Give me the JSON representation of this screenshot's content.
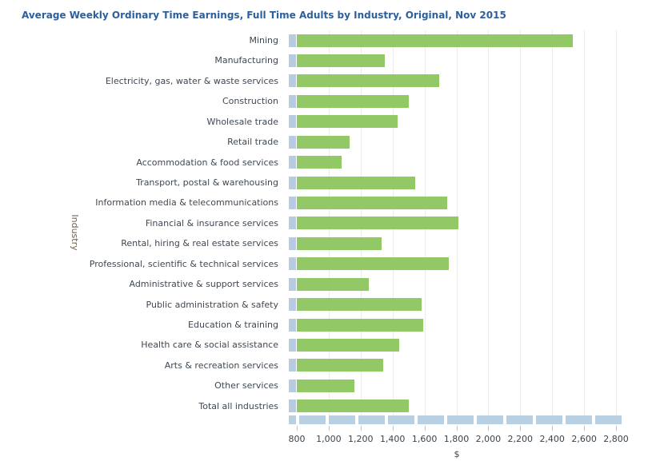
{
  "title": "Average Weekly Ordinary Time Earnings, Full Time Adults by Industry, Original, Nov 2015",
  "chart_data": {
    "type": "bar",
    "orientation": "horizontal",
    "title": "Average Weekly Ordinary Time Earnings, Full Time Adults by Industry, Original, Nov 2015",
    "xlabel": "$",
    "ylabel": "Industry",
    "grid": true,
    "xlim": [
      800,
      2800
    ],
    "categories": [
      "Mining",
      "Manufacturing",
      "Electricity, gas, water & waste services",
      "Construction",
      "Wholesale trade",
      "Retail trade",
      "Accommodation & food services",
      "Transport, postal & warehousing",
      "Information media & telecommunications",
      "Financial & insurance services",
      "Rental, hiring & real estate services",
      "Professional, scientific & technical services",
      "Administrative & support services",
      "Public administration & safety",
      "Education & training",
      "Health care & social assistance",
      "Arts & recreation services",
      "Other services",
      "Total all industries"
    ],
    "values": [
      2530,
      1350,
      1690,
      1500,
      1430,
      1130,
      1080,
      1540,
      1740,
      1810,
      1330,
      1750,
      1250,
      1580,
      1590,
      1440,
      1340,
      1160,
      1500
    ],
    "x_tick_values": [
      800,
      1000,
      1200,
      1400,
      1600,
      1800,
      2000,
      2200,
      2400,
      2600,
      2800
    ],
    "x_tick_labels": [
      "800",
      "1,000",
      "1,200",
      "1,400",
      "1,600",
      "1,800",
      "2,000",
      "2,200",
      "2,400",
      "2,600",
      "2,800"
    ]
  },
  "colors": {
    "title": "#2d5f9c",
    "bar": "#93c866",
    "row_handle": "#b7cce0",
    "scrollbar": "#b9cfe2",
    "gridline": "#ebebf2",
    "axis_text": "#3a434c",
    "category_text": "#3f4852",
    "y_axis_title_text": "#6e6152"
  }
}
